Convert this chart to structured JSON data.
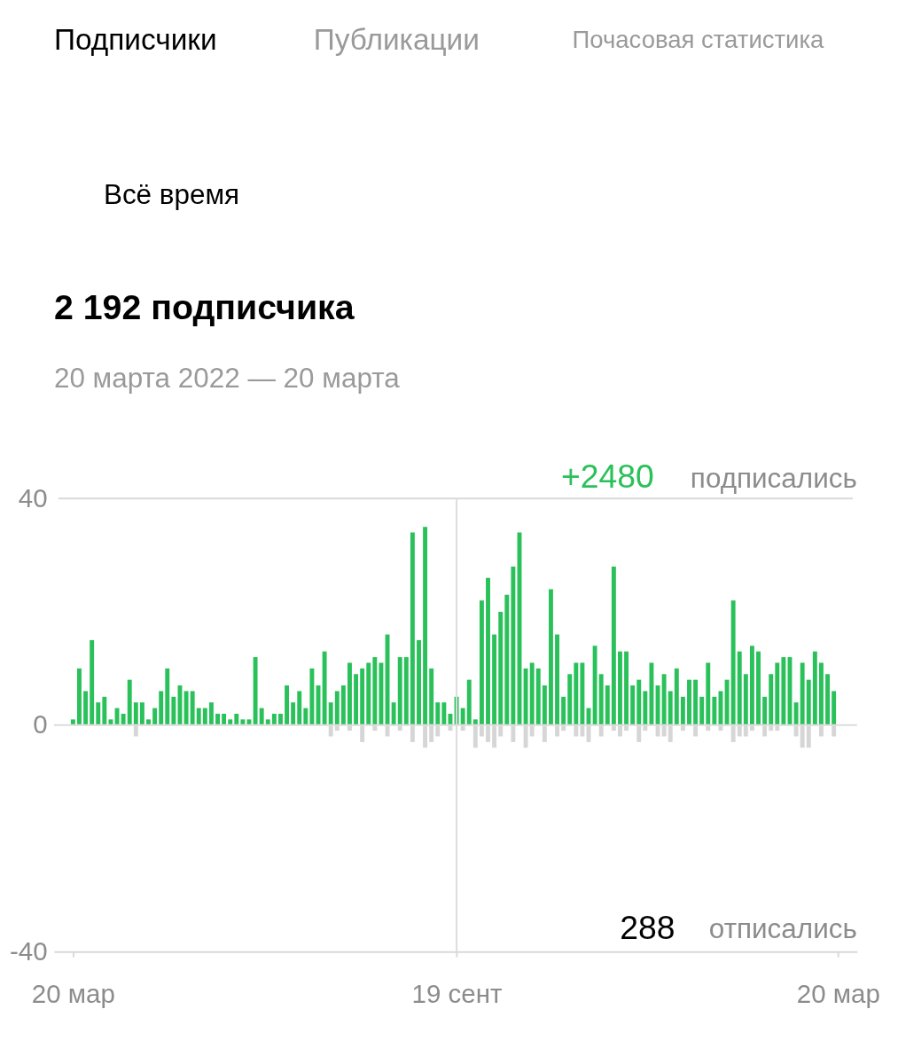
{
  "chart_data": {
    "type": "bar",
    "title": "2 192 подписчика",
    "subtitle": "20 марта 2022 — 20 марта",
    "annotations": [
      "Подписчики",
      "Публикации",
      "Почасовая статистика",
      "Всё время",
      "+2480",
      "подписались",
      "288",
      "отписались"
    ],
    "x": [
      "2022-03-20",
      "2022-03-23",
      "2022-03-26",
      "2022-03-29",
      "2022-04-01",
      "2022-04-04",
      "2022-04-07",
      "2022-04-10",
      "2022-04-13",
      "2022-04-16",
      "2022-04-19",
      "2022-04-22",
      "2022-04-25",
      "2022-04-28",
      "2022-05-01",
      "2022-05-04",
      "2022-05-07",
      "2022-05-10",
      "2022-05-13",
      "2022-05-16",
      "2022-05-19",
      "2022-05-22",
      "2022-05-25",
      "2022-05-28",
      "2022-05-31",
      "2022-06-03",
      "2022-06-06",
      "2022-06-09",
      "2022-06-12",
      "2022-06-15",
      "2022-06-18",
      "2022-06-21",
      "2022-06-24",
      "2022-06-27",
      "2022-06-30",
      "2022-07-03",
      "2022-07-06",
      "2022-07-09",
      "2022-07-12",
      "2022-07-15",
      "2022-07-18",
      "2022-07-21",
      "2022-07-24",
      "2022-07-27",
      "2022-07-30",
      "2022-08-02",
      "2022-08-05",
      "2022-08-08",
      "2022-08-11",
      "2022-08-14",
      "2022-08-17",
      "2022-08-20",
      "2022-08-23",
      "2022-08-26",
      "2022-08-29",
      "2022-09-01",
      "2022-09-04",
      "2022-09-07",
      "2022-09-10",
      "2022-09-13",
      "2022-09-16",
      "2022-09-19",
      "2022-09-22",
      "2022-09-25",
      "2022-09-28",
      "2022-10-01",
      "2022-10-04",
      "2022-10-07",
      "2022-10-10",
      "2022-10-13",
      "2022-10-16",
      "2022-10-19",
      "2022-10-22",
      "2022-10-25",
      "2022-10-28",
      "2022-10-31",
      "2022-11-03",
      "2022-11-06",
      "2022-11-09",
      "2022-11-12",
      "2022-11-15",
      "2022-11-18",
      "2022-11-21",
      "2022-11-24",
      "2022-11-27",
      "2022-11-30",
      "2022-12-03",
      "2022-12-06",
      "2022-12-09",
      "2022-12-12",
      "2022-12-15",
      "2022-12-18",
      "2022-12-21",
      "2022-12-24",
      "2022-12-27",
      "2022-12-30",
      "2023-01-02",
      "2023-01-05",
      "2023-01-08",
      "2023-01-11",
      "2023-01-14",
      "2023-01-17",
      "2023-01-20",
      "2023-01-23",
      "2023-01-26",
      "2023-01-29",
      "2023-02-01",
      "2023-02-04",
      "2023-02-07",
      "2023-02-10",
      "2023-02-13",
      "2023-02-16",
      "2023-02-19",
      "2023-02-22",
      "2023-02-25",
      "2023-02-28",
      "2023-03-03",
      "2023-03-06",
      "2023-03-09",
      "2023-03-12",
      "2023-03-15",
      "2023-03-18"
    ],
    "series": [
      {
        "color": "#2ac15a",
        "values": [
          1,
          10,
          6,
          15,
          4,
          5,
          1,
          3,
          2,
          8,
          4,
          4,
          1,
          3,
          6,
          10,
          5,
          7,
          6,
          6,
          3,
          3,
          4,
          2,
          2,
          1,
          2,
          1,
          1,
          12,
          3,
          1,
          2,
          2,
          7,
          4,
          6,
          3,
          10,
          7,
          13,
          4,
          6,
          7,
          11,
          9,
          10,
          11,
          12,
          11,
          16,
          4,
          12,
          12,
          34,
          15,
          35,
          10,
          4,
          4,
          2,
          5,
          3,
          8,
          1,
          22,
          26,
          16,
          20,
          23,
          28,
          34,
          10,
          11,
          10,
          7,
          24,
          16,
          5,
          9,
          11,
          11,
          3,
          14,
          9,
          7,
          28,
          13,
          13,
          7,
          8,
          6,
          11,
          7,
          9,
          6,
          10,
          5,
          8,
          8,
          5,
          11,
          5,
          6,
          8,
          22,
          13,
          9,
          14,
          13,
          5,
          9,
          11,
          12,
          12,
          4,
          11,
          8,
          13,
          11,
          9,
          6
        ]
      },
      {
        "color": "#d6d6d6",
        "values": [
          null,
          null,
          null,
          null,
          null,
          null,
          null,
          null,
          null,
          null,
          -2,
          null,
          null,
          null,
          null,
          null,
          null,
          null,
          null,
          null,
          null,
          null,
          null,
          null,
          null,
          null,
          null,
          null,
          null,
          null,
          null,
          null,
          null,
          null,
          null,
          null,
          null,
          null,
          null,
          null,
          null,
          -2,
          -1,
          null,
          -1,
          null,
          -3,
          null,
          -1,
          null,
          -2,
          null,
          -1,
          null,
          -3,
          null,
          -4,
          -3,
          -2,
          null,
          -1,
          null,
          -1,
          null,
          -4,
          -2,
          -3,
          -4,
          -2,
          null,
          -3,
          null,
          -4,
          -2,
          null,
          -3,
          null,
          -2,
          -1,
          null,
          -2,
          -2,
          -3,
          null,
          -2,
          null,
          -1,
          -2,
          -1,
          null,
          -3,
          -1,
          null,
          -2,
          -2,
          -3,
          null,
          -1,
          null,
          -2,
          null,
          -1,
          null,
          -1,
          null,
          -3,
          -2,
          -2,
          -1,
          null,
          -2,
          -1,
          -1,
          null,
          null,
          -2,
          -4,
          -4,
          null,
          -2,
          null,
          -2
        ]
      }
    ],
    "xlim": [
      "2022-03-13",
      "2023-03-27"
    ],
    "xticks": [
      {
        "value": "2022-03-20",
        "label": "20 мар"
      },
      {
        "value": "2022-09-19",
        "label": "19 сент"
      },
      {
        "value": "2023-03-20",
        "label": "20 мар"
      }
    ],
    "ylim": [
      -40,
      40
    ],
    "yticks": [
      -40,
      0,
      40
    ],
    "ref_lines": [
      {
        "axis": "x",
        "value": "2022-09-19",
        "color": "#dddddd"
      },
      {
        "axis": "y",
        "value": 0,
        "color": "#dddddd"
      }
    ],
    "legend": false
  }
}
